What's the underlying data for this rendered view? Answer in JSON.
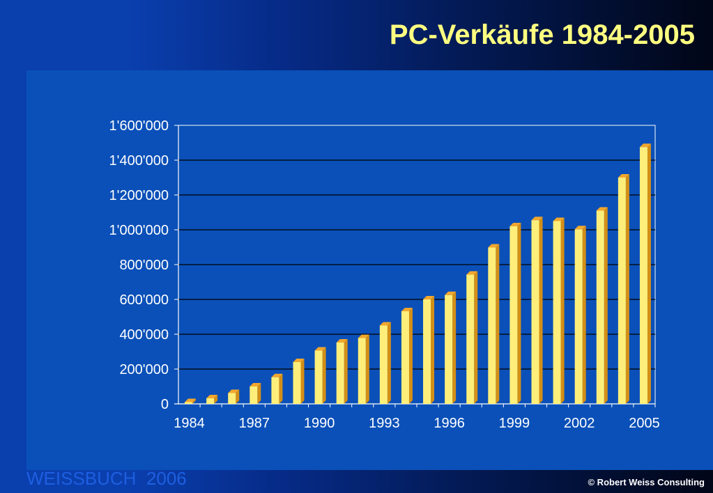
{
  "title": "PC-Verkäufe 1984-2005",
  "footer": {
    "brand": "WEISSBUCH  2006",
    "copyright": "© Robert Weiss Consulting"
  },
  "colors": {
    "title": "#ffff80",
    "bar_front": "#ffef7a",
    "bar_side": "#d48f16",
    "bar_top": "#f2a72e",
    "axis_text": "#ffffff",
    "plot_bg": "#0a50b8",
    "gridline": "#000000"
  },
  "chart_data": {
    "type": "bar",
    "title": "",
    "xlabel": "",
    "ylabel": "",
    "ylim": [
      0,
      1600000
    ],
    "grid": true,
    "categories": [
      "1984",
      "1985",
      "1986",
      "1987",
      "1988",
      "1989",
      "1990",
      "1991",
      "1992",
      "1993",
      "1994",
      "1995",
      "1996",
      "1997",
      "1998",
      "1999",
      "2000",
      "2001",
      "2002",
      "2003",
      "2004",
      "2005"
    ],
    "values": [
      10000,
      32000,
      62000,
      100000,
      153000,
      240000,
      306000,
      352000,
      378000,
      450000,
      532000,
      600000,
      625000,
      742000,
      898000,
      1020000,
      1055000,
      1050000,
      1003000,
      1110000,
      1300000,
      1475000
    ],
    "y_ticks": [
      0,
      200000,
      400000,
      600000,
      800000,
      1000000,
      1200000,
      1400000,
      1600000
    ],
    "y_tick_labels": [
      "0",
      "200'000",
      "400'000",
      "600'000",
      "800'000",
      "1'000'000",
      "1'200'000",
      "1'400'000",
      "1'600'000"
    ],
    "x_tick_labels": [
      "1984",
      "1987",
      "1990",
      "1993",
      "1996",
      "1999",
      "2002",
      "2005"
    ],
    "x_tick_label_categories": [
      "1984",
      "1987",
      "1990",
      "1993",
      "1996",
      "1999",
      "2002",
      "2005"
    ]
  }
}
